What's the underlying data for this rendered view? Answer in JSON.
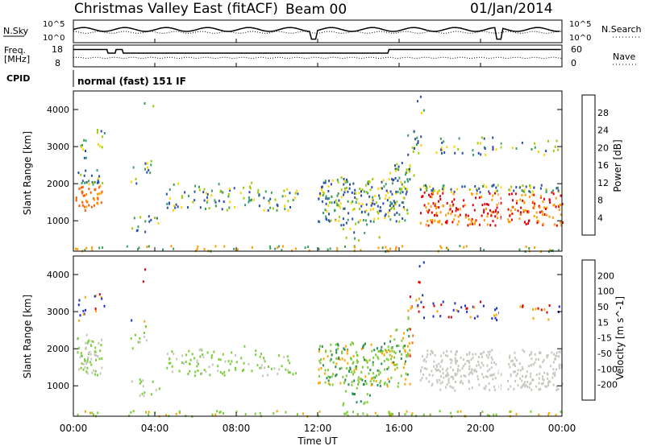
{
  "header": {
    "title": "Christmas Valley East (fitACF)",
    "beam": "Beam 00",
    "date": "01/Jan/2014"
  },
  "top_panels": {
    "nsky_label": "N.Sky",
    "nsky_ticks": [
      "10^5",
      "10^0"
    ],
    "nsearch_label": "N.Search",
    "nsearch_ticks": [
      "10^5",
      "10^0"
    ],
    "freq_label": "Freq.",
    "freq_unit": "[MHz]",
    "freq_ticks": [
      "18",
      "8"
    ],
    "nave_label": "Nave",
    "nave_ticks": [
      "60",
      "0"
    ],
    "cpid_label": "CPID",
    "cpid_value": "normal (fast) 151 IF"
  },
  "chart_data": [
    {
      "type": "heatmap",
      "name": "power-panel",
      "ylabel": "Slant Range [km]",
      "yticks": [
        "4000",
        "3000",
        "2000",
        "1000"
      ],
      "ylim": [
        180,
        4500
      ],
      "xlim": [
        0,
        24
      ],
      "colorbar": {
        "label": "Power [dB]",
        "ticks": [
          "28",
          "24",
          "20",
          "16",
          "12",
          "8",
          "4"
        ],
        "colors": [
          "#e8000b",
          "#ff5a00",
          "#ff9a00",
          "#ffd200",
          "#9ccc00",
          "#3aa060",
          "#2850a8",
          "#1020ff"
        ]
      }
    },
    {
      "type": "heatmap",
      "name": "velocity-panel",
      "ylabel": "Slant Range [km]",
      "yticks": [
        "4000",
        "3000",
        "2000",
        "1000"
      ],
      "ylim": [
        180,
        4500
      ],
      "xlim": [
        0,
        24
      ],
      "xlabel": "Time UT",
      "xticks": [
        "00:00",
        "04:00",
        "08:00",
        "12:00",
        "16:00",
        "20:00",
        "00:00"
      ],
      "colorbar": {
        "label": "Velocity [m s^-1]",
        "ticks": [
          "200",
          "100",
          "50",
          "15",
          "-15",
          "-50",
          "-100",
          "-200"
        ],
        "colors": [
          "#1f2fd0",
          "#3a58c8",
          "#2e8b57",
          "#7ccd3a",
          "#c8c8c0",
          "#ffa500",
          "#ff6a00",
          "#e00000",
          "#ff2020"
        ]
      }
    }
  ]
}
